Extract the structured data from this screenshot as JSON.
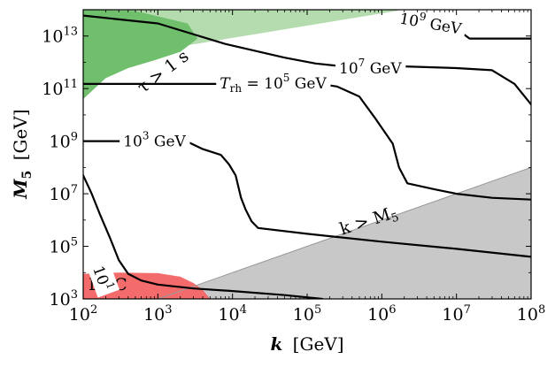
{
  "chart_data": {
    "type": "line",
    "title": "",
    "x_scale": "log",
    "y_scale": "log",
    "xlim": [
      100,
      100000000
    ],
    "ylim": [
      1000,
      100000000000000
    ],
    "xlabel_symbol": "k",
    "xlabel_unit": "[GeV]",
    "ylabel_symbol": "M",
    "ylabel_sub": "5",
    "ylabel_unit": "[GeV]",
    "x_ticks": [
      {
        "value": 100,
        "base": "10",
        "exp": "2"
      },
      {
        "value": 1000,
        "base": "10",
        "exp": "3"
      },
      {
        "value": 10000,
        "base": "10",
        "exp": "4"
      },
      {
        "value": 100000,
        "base": "10",
        "exp": "5"
      },
      {
        "value": 1000000,
        "base": "10",
        "exp": "6"
      },
      {
        "value": 10000000,
        "base": "10",
        "exp": "7"
      },
      {
        "value": 100000000,
        "base": "10",
        "exp": "8"
      }
    ],
    "y_ticks": [
      {
        "value": 1000,
        "base": "10",
        "exp": "3"
      },
      {
        "value": 100000,
        "base": "10",
        "exp": "5"
      },
      {
        "value": 10000000,
        "base": "10",
        "exp": "7"
      },
      {
        "value": 1000000000,
        "base": "10",
        "exp": "9"
      },
      {
        "value": 100000000000,
        "base": "10",
        "exp": "11"
      },
      {
        "value": 10000000000000,
        "base": "10",
        "exp": "13"
      }
    ],
    "regions": [
      {
        "name": "lifetime-light",
        "label": "",
        "color": "#b5dcae",
        "points": [
          [
            100,
            1000000000000
          ],
          [
            100,
            100000000000000
          ],
          [
            2000000,
            100000000000000
          ]
        ]
      },
      {
        "name": "lifetime",
        "label_main": "τ > 1 s",
        "color": "#6fbf6c",
        "points": [
          [
            100,
            40000000000
          ],
          [
            100,
            100000000000000
          ],
          [
            500,
            90000000000000
          ],
          [
            2500,
            30000000000000
          ],
          [
            3400,
            8000000000000
          ],
          [
            2000,
            2500000000000
          ],
          [
            900,
            1200000000000
          ],
          [
            400,
            600000000000
          ],
          [
            200,
            250000000000
          ]
        ]
      },
      {
        "name": "k-gt-m5",
        "label_main": "k > M",
        "label_sub": "5",
        "color": "#c8c8c8",
        "points": [
          [
            1000,
            1000
          ],
          [
            100000000,
            100000000
          ],
          [
            100000000,
            1000
          ]
        ]
      },
      {
        "name": "lhc",
        "label_main": "LHC",
        "color": "#f36b6b",
        "points": [
          [
            100,
            1000
          ],
          [
            100,
            9000
          ],
          [
            300,
            10000
          ],
          [
            1000,
            9500
          ],
          [
            2000,
            7000
          ],
          [
            3000,
            4000
          ],
          [
            4000,
            2200
          ],
          [
            5000,
            1000
          ]
        ]
      }
    ],
    "series": [
      {
        "label_pre": "10",
        "label_exp": "1",
        "label_post": "",
        "label_at": [
          180,
          6000
        ],
        "points": [
          [
            100,
            50000000
          ],
          [
            130,
            10000000
          ],
          [
            170,
            1500000
          ],
          [
            230,
            200000
          ],
          [
            300,
            30000
          ],
          [
            400,
            9000
          ],
          [
            600,
            5000
          ],
          [
            1000,
            3500
          ],
          [
            3000,
            2500
          ],
          [
            10000,
            2000
          ],
          [
            50000,
            1400
          ],
          [
            160000,
            1000
          ]
        ]
      },
      {
        "label_pre": "10",
        "label_exp": "3",
        "label_post": " GeV",
        "label_at": [
          900,
          1000000000
        ],
        "points": [
          [
            100,
            1000000000
          ],
          [
            110,
            1000000000
          ],
          [
            2400,
            1000000000
          ],
          [
            4000,
            500000000
          ],
          [
            7000,
            300000000
          ],
          [
            9000,
            130000000
          ],
          [
            11000,
            50000000
          ],
          [
            13000,
            7000000
          ],
          [
            15000,
            2500000
          ],
          [
            18000,
            900000
          ],
          [
            22000,
            500000
          ],
          [
            100000,
            300000
          ],
          [
            1000000,
            150000
          ],
          [
            10000000,
            80000
          ],
          [
            100000000,
            40000
          ]
        ]
      },
      {
        "label_pre": "T",
        "label_sub": "rh",
        "label_post": " = 10",
        "label_post_exp": "5",
        "label_tail": " GeV",
        "label_at": [
          35000,
          160000000000
        ],
        "points": [
          [
            100,
            150000000000
          ],
          [
            5000,
            150000000000
          ],
          [
            15000,
            150000000000
          ],
          [
            150000,
            150000000000
          ],
          [
            250000,
            120000000000
          ],
          [
            500000,
            50000000000
          ],
          [
            800000,
            8000000000
          ],
          [
            1400000,
            800000000
          ],
          [
            1700000,
            100000000
          ],
          [
            2200000,
            25000000
          ],
          [
            5000000,
            15000000
          ],
          [
            10000000,
            10000000
          ],
          [
            30000000,
            7000000
          ],
          [
            100000000,
            6000000
          ]
        ]
      },
      {
        "label_pre": "10",
        "label_exp": "7",
        "label_post": " GeV",
        "label_at": [
          700000,
          600000000000
        ],
        "points": [
          [
            100,
            60000000000000
          ],
          [
            1000,
            30000000000000
          ],
          [
            8000,
            5000000000000
          ],
          [
            50000,
            1500000000000
          ],
          [
            130000,
            900000000000
          ],
          [
            300000,
            700000000000
          ],
          [
            2000000,
            700000000000
          ],
          [
            10000000,
            600000000000
          ],
          [
            30000000,
            500000000000
          ],
          [
            60000000,
            150000000000
          ],
          [
            100000000,
            25000000000
          ]
        ]
      },
      {
        "label_pre": "10",
        "label_exp": "9",
        "label_post": " GeV",
        "label_at": [
          4500000,
          30000000000000
        ],
        "points": [
          [
            2500000,
            100000000000000
          ],
          [
            7000000,
            40000000000000
          ],
          [
            15000000,
            8000000000000
          ],
          [
            40000000,
            8000000000000
          ],
          [
            100000000,
            8000000000000
          ]
        ]
      }
    ]
  }
}
